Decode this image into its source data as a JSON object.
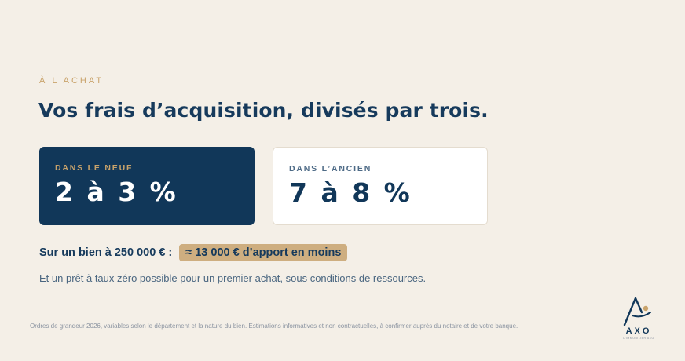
{
  "eyebrow": "À L'ACHAT",
  "headline": "Vos frais d’acquisition, divisés par trois.",
  "cards": [
    {
      "label": "DANS LE NEUF",
      "value": "2 à 3 %"
    },
    {
      "label": "DANS L’ANCIEN",
      "value": "7 à 8 %"
    }
  ],
  "example": {
    "text": "Sur un bien à 250 000 € :",
    "highlight": "≈ 13 000 € d’apport en moins"
  },
  "ptz": "Et un prêt à taux zéro possible pour un premier achat, sous conditions de ressources.",
  "disclaimer": "Ordres de grandeur 2026, variables selon le département et la nature du bien. Estimations informatives et non contractuelles, à confirmer auprès du notaire et de votre banque.",
  "logo": {
    "brand": "AXO",
    "tagline": "L'IMMOBILIER AXO"
  },
  "colors": {
    "navy": "#113759",
    "gold": "#c9a36b",
    "cream": "#f4efe7"
  }
}
